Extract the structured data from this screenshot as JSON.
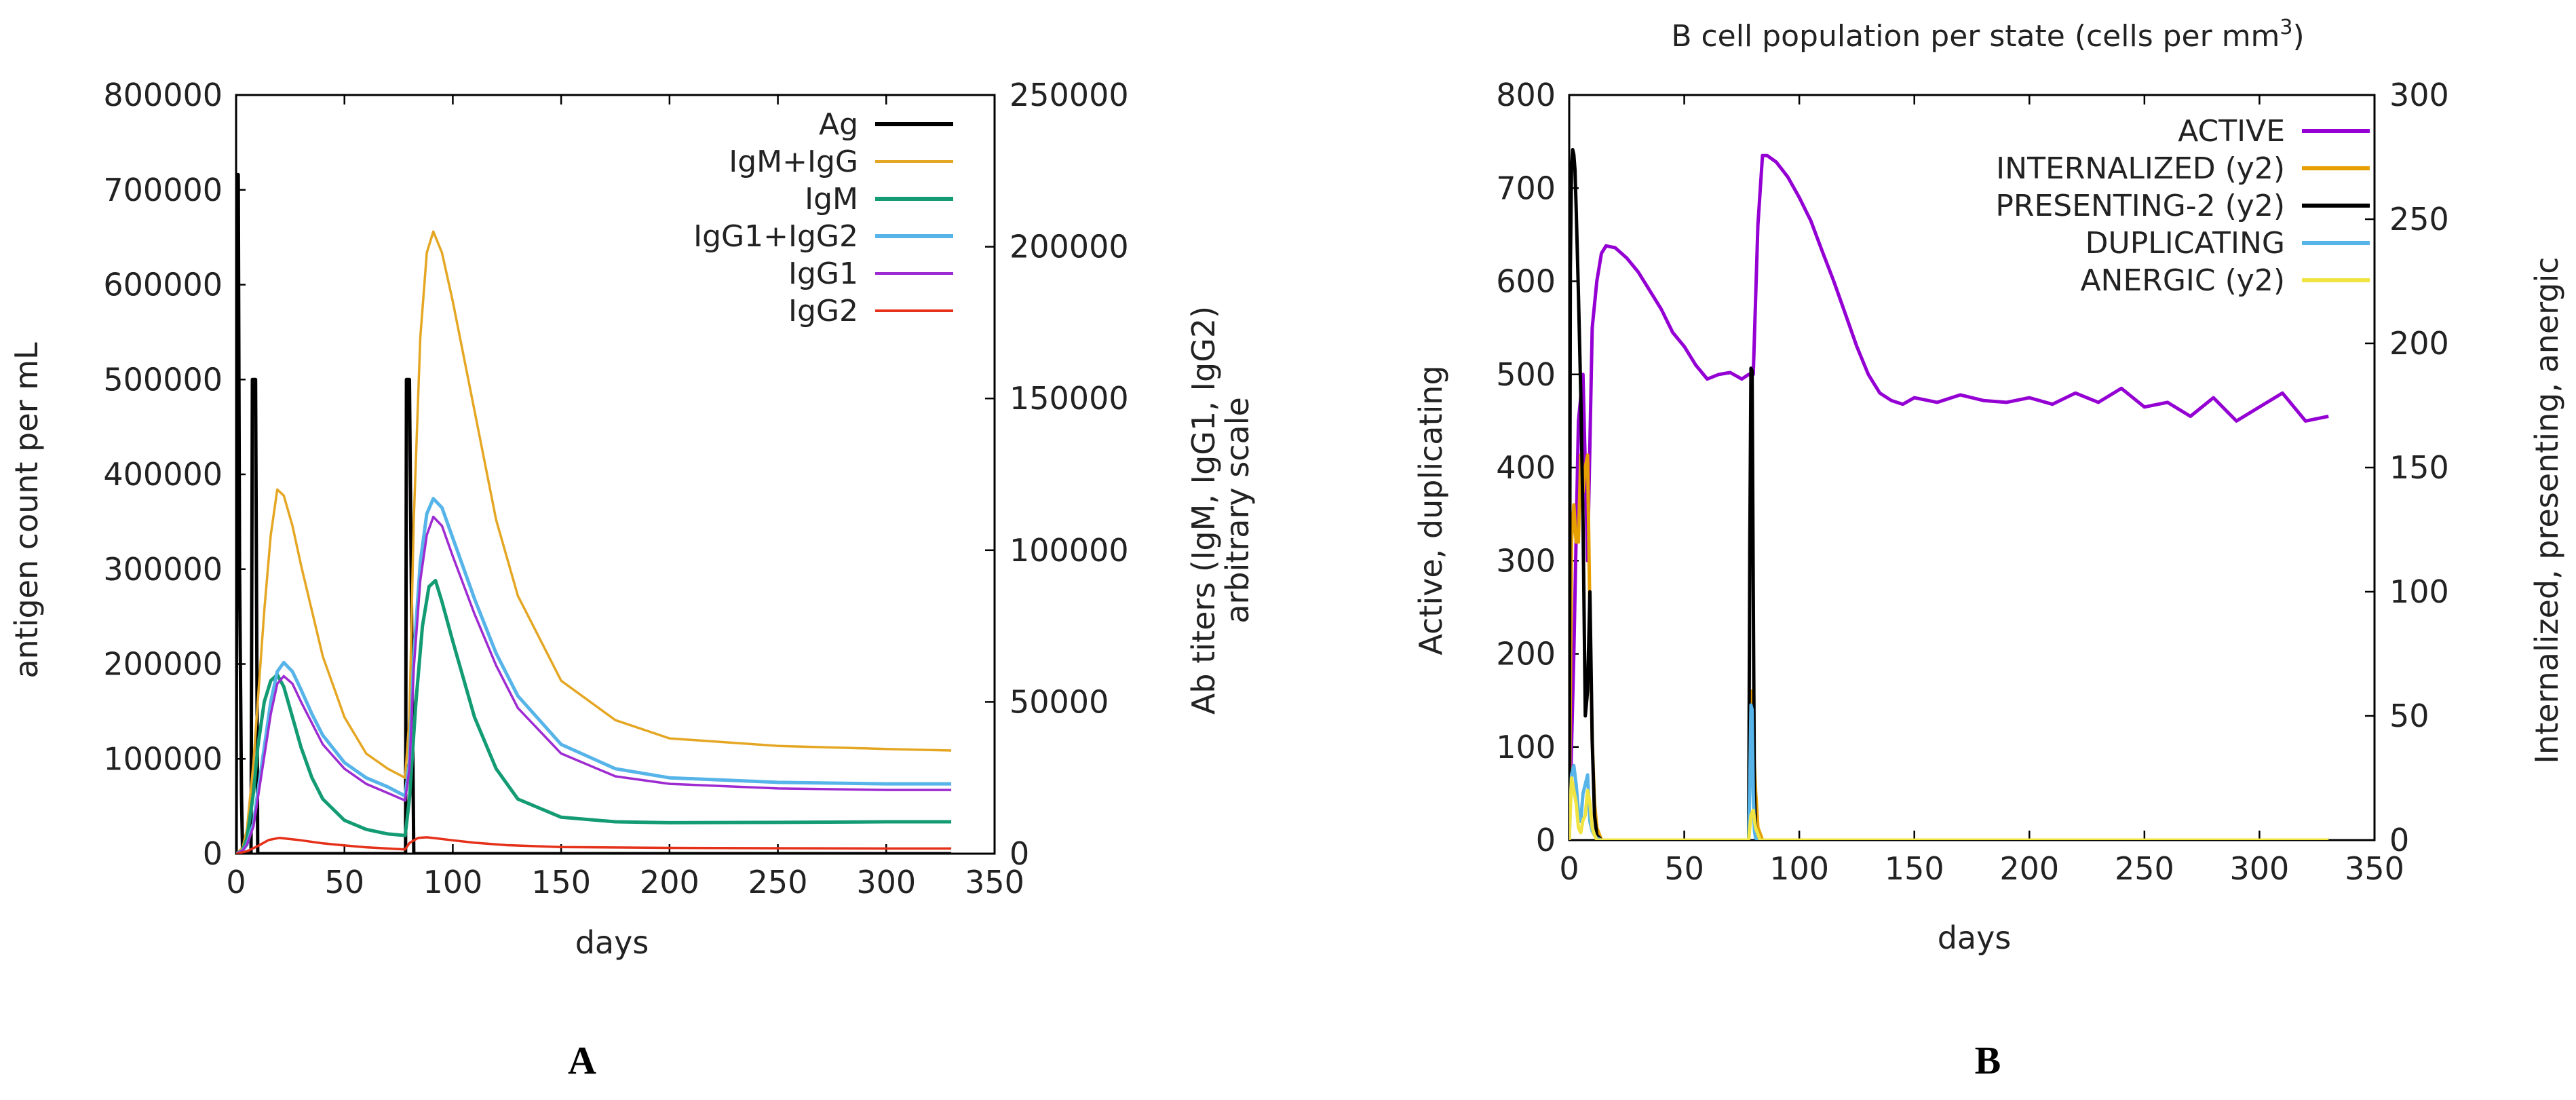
{
  "chart_data": [
    {
      "panel": "A",
      "type": "line",
      "title": "",
      "xlabel": "days",
      "ylabel": "antigen count per mL",
      "y2label": [
        "Ab titers (IgM, IgG1, IgG2)",
        "arbitrary scale"
      ],
      "xlim": [
        0,
        350
      ],
      "ylim": [
        0,
        800000
      ],
      "y2lim": [
        0,
        250000
      ],
      "xticks": [
        "0",
        "50",
        "100",
        "150",
        "200",
        "250",
        "300",
        "350"
      ],
      "yticks": [
        "0",
        "100000",
        "200000",
        "300000",
        "400000",
        "500000",
        "600000",
        "700000",
        "800000"
      ],
      "y2ticks": [
        "0",
        "50000",
        "100000",
        "150000",
        "200000",
        "250000"
      ],
      "legend_position": "top-right",
      "series": [
        {
          "name": "Ag",
          "axis": "y",
          "color": "#000000",
          "x": [
            0,
            0.5,
            1,
            1.6,
            2.5,
            3,
            3.6,
            6.9,
            7.5,
            9,
            10,
            78.2,
            78.6,
            80,
            82,
            330
          ],
          "y": [
            0,
            716000,
            716000,
            300000,
            60000,
            0,
            0,
            0,
            500000,
            500000,
            0,
            0,
            500000,
            500000,
            0,
            0
          ]
        },
        {
          "name": "IgM+IgG",
          "axis": "y2",
          "color": "#e5a723",
          "x": [
            0,
            3,
            5,
            8,
            10,
            13,
            16,
            19,
            22,
            26,
            30,
            35,
            40,
            50,
            60,
            70,
            78,
            80,
            82,
            85,
            88,
            91,
            95,
            100,
            110,
            120,
            130,
            150,
            175,
            200,
            250,
            300,
            330
          ],
          "y": [
            0,
            2000,
            8000,
            30000,
            50000,
            80000,
            105000,
            120000,
            118000,
            108000,
            95000,
            80000,
            65000,
            45000,
            33000,
            28000,
            25000,
            45000,
            110000,
            170000,
            198000,
            205000,
            198000,
            182000,
            146000,
            110000,
            85000,
            57000,
            44000,
            38000,
            35500,
            34500,
            34000
          ]
        },
        {
          "name": "IgM",
          "axis": "y2",
          "color": "#139b73",
          "x": [
            0,
            3,
            5,
            8,
            10,
            13,
            16,
            19,
            22,
            26,
            30,
            35,
            40,
            50,
            60,
            70,
            78,
            80,
            83,
            86,
            89,
            92,
            95,
            100,
            110,
            120,
            130,
            150,
            175,
            200,
            250,
            300,
            330
          ],
          "y": [
            0,
            1000,
            5000,
            20000,
            35000,
            50000,
            57000,
            59000,
            55000,
            45000,
            35000,
            25000,
            18000,
            11000,
            8000,
            6500,
            6000,
            18000,
            50000,
            75000,
            88000,
            90000,
            83000,
            70000,
            45000,
            28000,
            18000,
            12000,
            10500,
            10200,
            10300,
            10500,
            10500
          ]
        },
        {
          "name": "IgG1+IgG2",
          "axis": "y2",
          "color": "#56b4e9",
          "x": [
            0,
            3,
            5,
            8,
            10,
            13,
            16,
            19,
            22,
            26,
            30,
            35,
            40,
            50,
            60,
            70,
            78,
            80,
            82,
            85,
            88,
            91,
            95,
            100,
            110,
            120,
            130,
            150,
            175,
            200,
            250,
            300,
            330
          ],
          "y": [
            0,
            1000,
            3000,
            10000,
            20000,
            35000,
            50000,
            60000,
            63000,
            60000,
            54000,
            46000,
            39000,
            30000,
            25000,
            22000,
            19000,
            30000,
            65000,
            96000,
            112000,
            117000,
            114000,
            104000,
            84000,
            66000,
            52000,
            36000,
            28000,
            25000,
            23500,
            23000,
            23000
          ]
        },
        {
          "name": "IgG1",
          "axis": "y2",
          "color": "#9d2bd1",
          "x": [
            0,
            3,
            5,
            8,
            10,
            13,
            16,
            19,
            22,
            26,
            30,
            35,
            40,
            50,
            60,
            70,
            78,
            80,
            82,
            85,
            88,
            91,
            95,
            100,
            110,
            120,
            130,
            150,
            175,
            200,
            250,
            300,
            330
          ],
          "y": [
            0,
            1000,
            3000,
            9000,
            18000,
            32000,
            46000,
            56000,
            58500,
            56000,
            50000,
            43000,
            36000,
            28000,
            23000,
            20000,
            17500,
            28000,
            61000,
            90000,
            105000,
            111000,
            108000,
            98000,
            79000,
            62000,
            48000,
            33000,
            25500,
            23000,
            21500,
            21000,
            21000
          ]
        },
        {
          "name": "IgG2",
          "axis": "y2",
          "color": "#e5311a",
          "x": [
            0,
            5,
            10,
            15,
            20,
            30,
            40,
            50,
            60,
            70,
            78,
            80,
            84,
            88,
            92,
            100,
            110,
            125,
            150,
            200,
            250,
            300,
            330
          ],
          "y": [
            0,
            800,
            2500,
            4500,
            5200,
            4400,
            3400,
            2700,
            2100,
            1700,
            1400,
            3500,
            5200,
            5400,
            5100,
            4400,
            3600,
            2800,
            2200,
            1900,
            1800,
            1700,
            1700
          ]
        }
      ]
    },
    {
      "panel": "B",
      "type": "line",
      "title": "B cell population  per state (cells per mm",
      "title_sup": "3",
      "title_close": ")",
      "xlabel": "days",
      "ylabel": "Active, duplicating",
      "y2label": "Internalized, presenting, anergic",
      "xlim": [
        0,
        350
      ],
      "ylim": [
        0,
        800
      ],
      "y2lim": [
        0,
        300
      ],
      "xticks": [
        "0",
        "50",
        "100",
        "150",
        "200",
        "250",
        "300",
        "350"
      ],
      "yticks": [
        "0",
        "100",
        "200",
        "300",
        "400",
        "500",
        "600",
        "700",
        "800"
      ],
      "y2ticks": [
        "0",
        "50",
        "100",
        "150",
        "200",
        "250",
        "300"
      ],
      "legend_position": "top-right",
      "series": [
        {
          "name": "ACTIVE",
          "axis": "y",
          "color": "#9400d3",
          "x": [
            0,
            2,
            4,
            6,
            8,
            10,
            12,
            14,
            16,
            20,
            25,
            30,
            35,
            40,
            45,
            50,
            55,
            60,
            65,
            70,
            75,
            78,
            80,
            82,
            84,
            86,
            90,
            95,
            100,
            105,
            110,
            115,
            120,
            125,
            130,
            135,
            140,
            145,
            150,
            160,
            170,
            180,
            190,
            200,
            210,
            220,
            230,
            240,
            250,
            260,
            270,
            280,
            290,
            300,
            310,
            320,
            330
          ],
          "y": [
            0,
            200,
            450,
            500,
            300,
            550,
            600,
            630,
            638,
            636,
            625,
            610,
            590,
            570,
            545,
            530,
            510,
            495,
            500,
            502,
            495,
            500,
            500,
            660,
            735,
            735,
            728,
            712,
            690,
            665,
            632,
            600,
            565,
            530,
            500,
            480,
            472,
            468,
            475,
            470,
            478,
            472,
            470,
            475,
            468,
            480,
            470,
            485,
            465,
            470,
            455,
            475,
            450,
            465,
            480,
            450,
            455
          ]
        },
        {
          "name": "INTERNALIZED (y2)",
          "axis": "y2",
          "color": "#e69f00",
          "x": [
            0,
            1,
            2,
            3,
            4,
            5,
            6,
            7,
            8,
            9,
            10,
            11,
            12,
            14,
            20,
            78,
            79,
            80,
            81,
            82,
            84,
            330
          ],
          "y": [
            0,
            120,
            135,
            120,
            120,
            155,
            140,
            150,
            155,
            90,
            40,
            15,
            5,
            0,
            0,
            0,
            60,
            40,
            20,
            5,
            0,
            0
          ]
        },
        {
          "name": "PRESENTING-2 (y2)",
          "axis": "y2",
          "color": "#000000",
          "x": [
            0,
            0.5,
            1,
            1.5,
            2,
            2.5,
            3,
            4,
            5,
            6,
            7,
            8,
            9,
            10,
            11,
            12,
            14,
            78,
            78.5,
            79,
            79.5,
            80,
            80.5,
            81,
            83,
            330
          ],
          "y": [
            0,
            230,
            270,
            278,
            276,
            270,
            255,
            220,
            180,
            130,
            50,
            60,
            100,
            40,
            10,
            2,
            0,
            0,
            120,
            190,
            189,
            100,
            20,
            5,
            0,
            0
          ]
        },
        {
          "name": "DUPLICATING",
          "axis": "y",
          "color": "#56b4e9",
          "x": [
            0,
            1,
            2,
            3,
            4,
            5,
            6,
            7,
            8,
            9,
            10,
            11,
            12,
            14,
            20,
            78,
            78.5,
            79,
            79.5,
            80,
            80.5,
            81,
            83,
            330
          ],
          "y": [
            0,
            70,
            80,
            60,
            30,
            20,
            50,
            60,
            70,
            20,
            10,
            5,
            2,
            0,
            0,
            0,
            60,
            145,
            140,
            50,
            10,
            2,
            0,
            0
          ]
        },
        {
          "name": "ANERGIC (y2)",
          "axis": "y2",
          "color": "#f0e442",
          "x": [
            0,
            1,
            2,
            3,
            4,
            5,
            6,
            7,
            8,
            9,
            10,
            11,
            12,
            14,
            20,
            78,
            79,
            80,
            81,
            83,
            330
          ],
          "y": [
            0,
            25,
            20,
            15,
            5,
            3,
            8,
            10,
            20,
            15,
            5,
            2,
            0,
            0,
            0,
            0,
            10,
            12,
            5,
            0,
            0
          ]
        }
      ]
    }
  ],
  "panel_labels": {
    "a": "A",
    "b": "B"
  }
}
